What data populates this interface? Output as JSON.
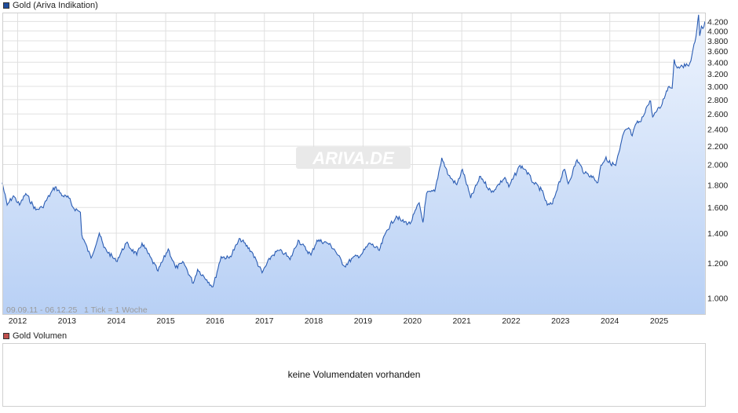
{
  "legend": {
    "price_label": "Gold (Ariva Indikation)",
    "price_color": "#1f4e9e",
    "volume_label": "Gold Volumen",
    "volume_color": "#c0504d"
  },
  "watermark": "ARIVA.DE",
  "footer_note": "09.09.11 - 06.12.25   1 Tick = 1 Woche",
  "volume_message": "keine Volumendaten vorhanden",
  "colors": {
    "line": "#2a5cb3",
    "fill_top": "#eef4fd",
    "fill_bottom": "#b8d0f5",
    "grid": "#e0e0e0"
  },
  "chart_data": {
    "type": "area",
    "title": "Gold (Ariva Indikation)",
    "scale": "log",
    "ylim": [
      920,
      4400
    ],
    "xlim": [
      2011.69,
      2025.93
    ],
    "grid": true,
    "x_ticks": [
      "2012",
      "2013",
      "2014",
      "2015",
      "2016",
      "2017",
      "2018",
      "2019",
      "2020",
      "2021",
      "2022",
      "2023",
      "2024",
      "2025"
    ],
    "y_ticks": [
      {
        "value": 1000,
        "label": "1.000"
      },
      {
        "value": 1200,
        "label": "1.200"
      },
      {
        "value": 1400,
        "label": "1.400"
      },
      {
        "value": 1600,
        "label": "1.600"
      },
      {
        "value": 1800,
        "label": "1.800"
      },
      {
        "value": 2000,
        "label": "2.000"
      },
      {
        "value": 2200,
        "label": "2.200"
      },
      {
        "value": 2400,
        "label": "2.400"
      },
      {
        "value": 2600,
        "label": "2.600"
      },
      {
        "value": 2800,
        "label": "2.800"
      },
      {
        "value": 3000,
        "label": "3.000"
      },
      {
        "value": 3200,
        "label": "3.200"
      },
      {
        "value": 3400,
        "label": "3.400"
      },
      {
        "value": 3600,
        "label": "3.600"
      },
      {
        "value": 3800,
        "label": "3.800"
      },
      {
        "value": 4000,
        "label": "4.000"
      },
      {
        "value": 4200,
        "label": "4.200"
      }
    ],
    "series": [
      {
        "x": [
          "2011-09-09",
          "2011-10-15",
          "2011-12-01",
          "2012-01-15",
          "2012-03-01",
          "2012-05-15",
          "2012-07-01",
          "2012-09-01",
          "2012-10-05",
          "2012-12-01",
          "2013-01-15",
          "2013-02-15",
          "2013-04-10",
          "2013-04-20",
          "2013-06-28",
          "2013-08-28",
          "2013-10-01",
          "2013-12-31",
          "2014-03-15",
          "2014-06-01",
          "2014-07-10",
          "2014-11-05",
          "2015-01-20",
          "2015-03-15",
          "2015-05-15",
          "2015-07-24",
          "2015-08-25",
          "2015-11-01",
          "2015-12-17",
          "2016-02-15",
          "2016-04-15",
          "2016-07-06",
          "2016-10-01",
          "2016-12-15",
          "2017-02-20",
          "2017-04-15",
          "2017-06-01",
          "2017-07-10",
          "2017-09-08",
          "2017-12-12",
          "2018-01-25",
          "2018-04-15",
          "2018-06-01",
          "2018-08-16",
          "2018-10-15",
          "2018-12-15",
          "2019-02-20",
          "2019-05-01",
          "2019-06-25",
          "2019-09-04",
          "2019-10-15",
          "2019-12-15",
          "2020-02-20",
          "2020-03-19",
          "2020-04-15",
          "2020-06-15",
          "2020-08-06",
          "2020-09-25",
          "2020-11-25",
          "2021-01-06",
          "2021-03-08",
          "2021-05-20",
          "2021-08-09",
          "2021-09-15",
          "2021-11-16",
          "2021-12-15",
          "2022-03-08",
          "2022-04-15",
          "2022-06-15",
          "2022-08-15",
          "2022-09-26",
          "2022-11-03",
          "2022-12-15",
          "2023-02-01",
          "2023-02-28",
          "2023-05-04",
          "2023-06-29",
          "2023-08-15",
          "2023-10-05",
          "2023-10-27",
          "2023-12-04",
          "2023-12-15",
          "2024-02-14",
          "2024-03-15",
          "2024-04-12",
          "2024-05-20",
          "2024-06-15",
          "2024-07-17",
          "2024-08-20",
          "2024-09-26",
          "2024-10-30",
          "2024-11-14",
          "2024-12-15",
          "2025-01-15",
          "2025-02-24",
          "2025-03-15",
          "2025-04-07",
          "2025-04-22",
          "2025-05-15",
          "2025-06-15",
          "2025-07-15",
          "2025-08-15",
          "2025-09-02",
          "2025-09-23",
          "2025-10-08",
          "2025-10-20",
          "2025-10-28",
          "2025-11-10",
          "2025-11-20",
          "2025-12-06"
        ],
        "values": [
          1820,
          1620,
          1700,
          1620,
          1720,
          1580,
          1600,
          1720,
          1780,
          1700,
          1680,
          1600,
          1560,
          1390,
          1230,
          1400,
          1300,
          1210,
          1330,
          1250,
          1330,
          1150,
          1290,
          1170,
          1200,
          1080,
          1160,
          1100,
          1060,
          1240,
          1230,
          1360,
          1270,
          1140,
          1240,
          1280,
          1260,
          1220,
          1350,
          1250,
          1350,
          1330,
          1290,
          1180,
          1230,
          1250,
          1330,
          1280,
          1420,
          1530,
          1490,
          1470,
          1640,
          1480,
          1720,
          1740,
          2070,
          1890,
          1800,
          1950,
          1680,
          1880,
          1730,
          1780,
          1870,
          1780,
          1990,
          1950,
          1820,
          1750,
          1620,
          1630,
          1800,
          1950,
          1810,
          2050,
          1910,
          1890,
          1820,
          1990,
          2080,
          2030,
          1990,
          2160,
          2350,
          2420,
          2320,
          2480,
          2500,
          2680,
          2780,
          2560,
          2640,
          2700,
          2930,
          3000,
          2970,
          3450,
          3300,
          3350,
          3330,
          3380,
          3550,
          3780,
          4050,
          4350,
          3900,
          4100,
          4050,
          4200
        ]
      }
    ]
  }
}
